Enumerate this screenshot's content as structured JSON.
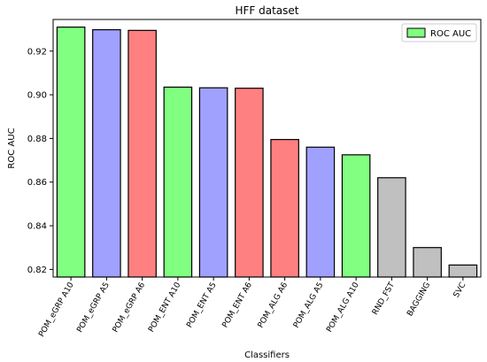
{
  "chart_data": {
    "type": "bar",
    "title": "HFF dataset",
    "xlabel": "Classifiers",
    "ylabel": "ROC AUC",
    "legend": {
      "label": "ROC AUC",
      "position": "top-right",
      "swatch_color": "#80ff80"
    },
    "ylim": [
      0.8165,
      0.9345
    ],
    "yticks": [
      0.82,
      0.84,
      0.86,
      0.88,
      0.9,
      0.92
    ],
    "ytick_labels": [
      "0.82",
      "0.84",
      "0.86",
      "0.88",
      "0.90",
      "0.92"
    ],
    "grid": false,
    "categories": [
      "POM_eGRP A10",
      "POM_eGRP A5",
      "POM_eGRP A6",
      "POM_ENT A10",
      "POM_ENT A5",
      "POM_ENT A6",
      "POM_ALG A6",
      "POM_ALG A5",
      "POM_ALG A10",
      "RND_FST",
      "BAGGING",
      "SVC"
    ],
    "values": [
      0.931,
      0.9298,
      0.9295,
      0.9035,
      0.9032,
      0.903,
      0.8795,
      0.876,
      0.8725,
      0.862,
      0.83,
      0.822
    ],
    "colors": [
      "#80ff80",
      "#a0a0ff",
      "#ff8080",
      "#80ff80",
      "#a0a0ff",
      "#ff8080",
      "#ff8080",
      "#a0a0ff",
      "#80ff80",
      "#c0c0c0",
      "#c0c0c0",
      "#c0c0c0"
    ]
  }
}
